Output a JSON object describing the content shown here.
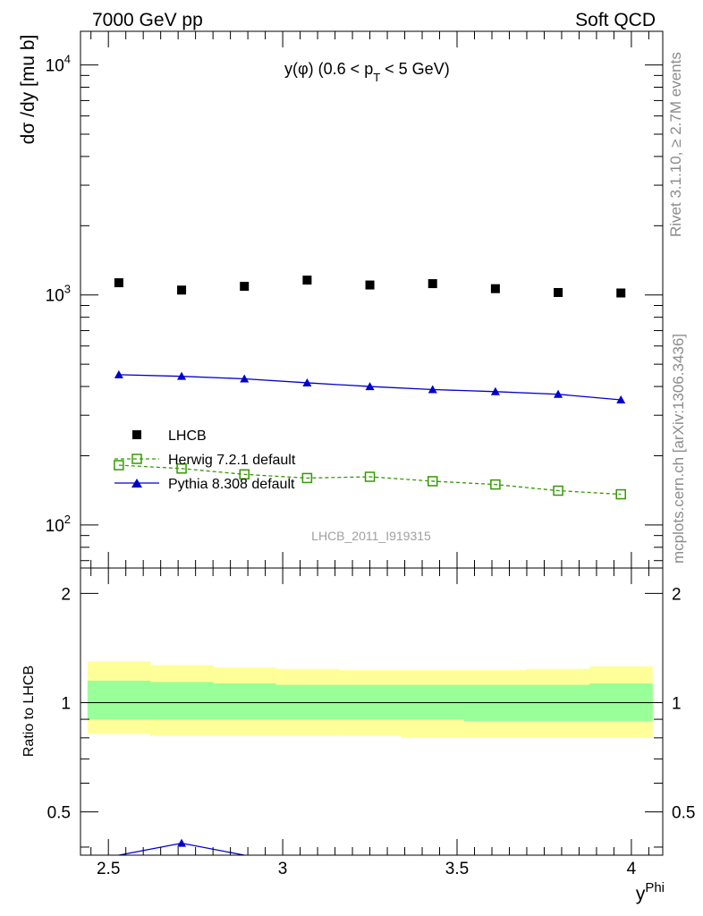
{
  "header": {
    "left": "7000 GeV pp",
    "right": "Soft QCD"
  },
  "side_labels": {
    "rivet": "Rivet 3.1.10, ≥ 2.7M events",
    "mcplots": "mcplots.cern.ch [arXiv:1306.3436]"
  },
  "chart_data": [
    {
      "type": "scatter",
      "title": "y(φ) (0.6 < p_T < 5 GeV)",
      "title_main": "y(φ) (0.6 < p",
      "title_sub": "T",
      "title_tail": " < 5 GeV)",
      "ylabel": "dσ /dy [mu b]",
      "xlabel": "",
      "yscale": "log",
      "ylim": [
        65,
        14000
      ],
      "xlim": [
        2.42,
        4.09
      ],
      "yticks": [
        {
          "v": 100,
          "base": "10",
          "exp": "2"
        },
        {
          "v": 1000,
          "base": "10",
          "exp": "3"
        },
        {
          "v": 10000,
          "base": "10",
          "exp": "4"
        }
      ],
      "watermark": "LHCB_2011_I919315",
      "legend_position": "middle-left",
      "series": [
        {
          "name": "LHCB",
          "style": "square-filled",
          "color": "#000000",
          "x": [
            2.53,
            2.71,
            2.89,
            3.07,
            3.25,
            3.43,
            3.61,
            3.79,
            3.97
          ],
          "y": [
            1130,
            1050,
            1090,
            1160,
            1105,
            1120,
            1065,
            1025,
            1020
          ]
        },
        {
          "name": "Herwig 7.2.1 default",
          "style": "square-open-dashed",
          "color": "#339900",
          "x": [
            2.53,
            2.71,
            2.89,
            3.07,
            3.25,
            3.43,
            3.61,
            3.79,
            3.97
          ],
          "y": [
            182,
            176,
            166,
            160,
            162,
            155,
            150,
            141,
            136
          ]
        },
        {
          "name": "Pythia 8.308 default",
          "style": "triangle-line",
          "color": "#0000cc",
          "x": [
            2.53,
            2.71,
            2.89,
            3.07,
            3.25,
            3.43,
            3.61,
            3.79,
            3.97
          ],
          "y": [
            450,
            443,
            432,
            415,
            400,
            388,
            380,
            370,
            350
          ]
        }
      ]
    },
    {
      "type": "line",
      "ylabel": "Ratio to LHCB",
      "xlabel": "y^Phi",
      "xlabel_base": "y",
      "xlabel_sup": "Phi",
      "ylim": [
        0.38,
        2.35
      ],
      "xlim": [
        2.42,
        4.09
      ],
      "yticks": [
        {
          "v": 0.5,
          "label": "0.5"
        },
        {
          "v": 1,
          "label": "1"
        },
        {
          "v": 2,
          "label": "2"
        }
      ],
      "xticks": [
        {
          "v": 2.5,
          "label": "2.5"
        },
        {
          "v": 3,
          "label": "3"
        },
        {
          "v": 3.5,
          "label": "3.5"
        },
        {
          "v": 4,
          "label": "4"
        }
      ],
      "bands": {
        "bins": [
          2.44,
          2.62,
          2.8,
          2.98,
          3.16,
          3.34,
          3.52,
          3.7,
          3.88,
          4.06
        ],
        "yellow_lo": [
          0.82,
          0.81,
          0.81,
          0.81,
          0.81,
          0.8,
          0.8,
          0.8,
          0.8
        ],
        "yellow_hi": [
          1.3,
          1.27,
          1.25,
          1.24,
          1.23,
          1.23,
          1.23,
          1.24,
          1.26
        ],
        "green_lo": [
          0.9,
          0.9,
          0.9,
          0.9,
          0.9,
          0.9,
          0.89,
          0.89,
          0.89
        ],
        "green_hi": [
          1.15,
          1.14,
          1.13,
          1.12,
          1.12,
          1.12,
          1.12,
          1.12,
          1.13
        ],
        "yellow_color": "#ffff99",
        "green_color": "#99ff99"
      },
      "pythia_ratio": {
        "x": [
          2.53,
          2.71,
          2.89
        ],
        "y": [
          0.37,
          0.41,
          0.37
        ],
        "color": "#0000cc"
      }
    }
  ]
}
